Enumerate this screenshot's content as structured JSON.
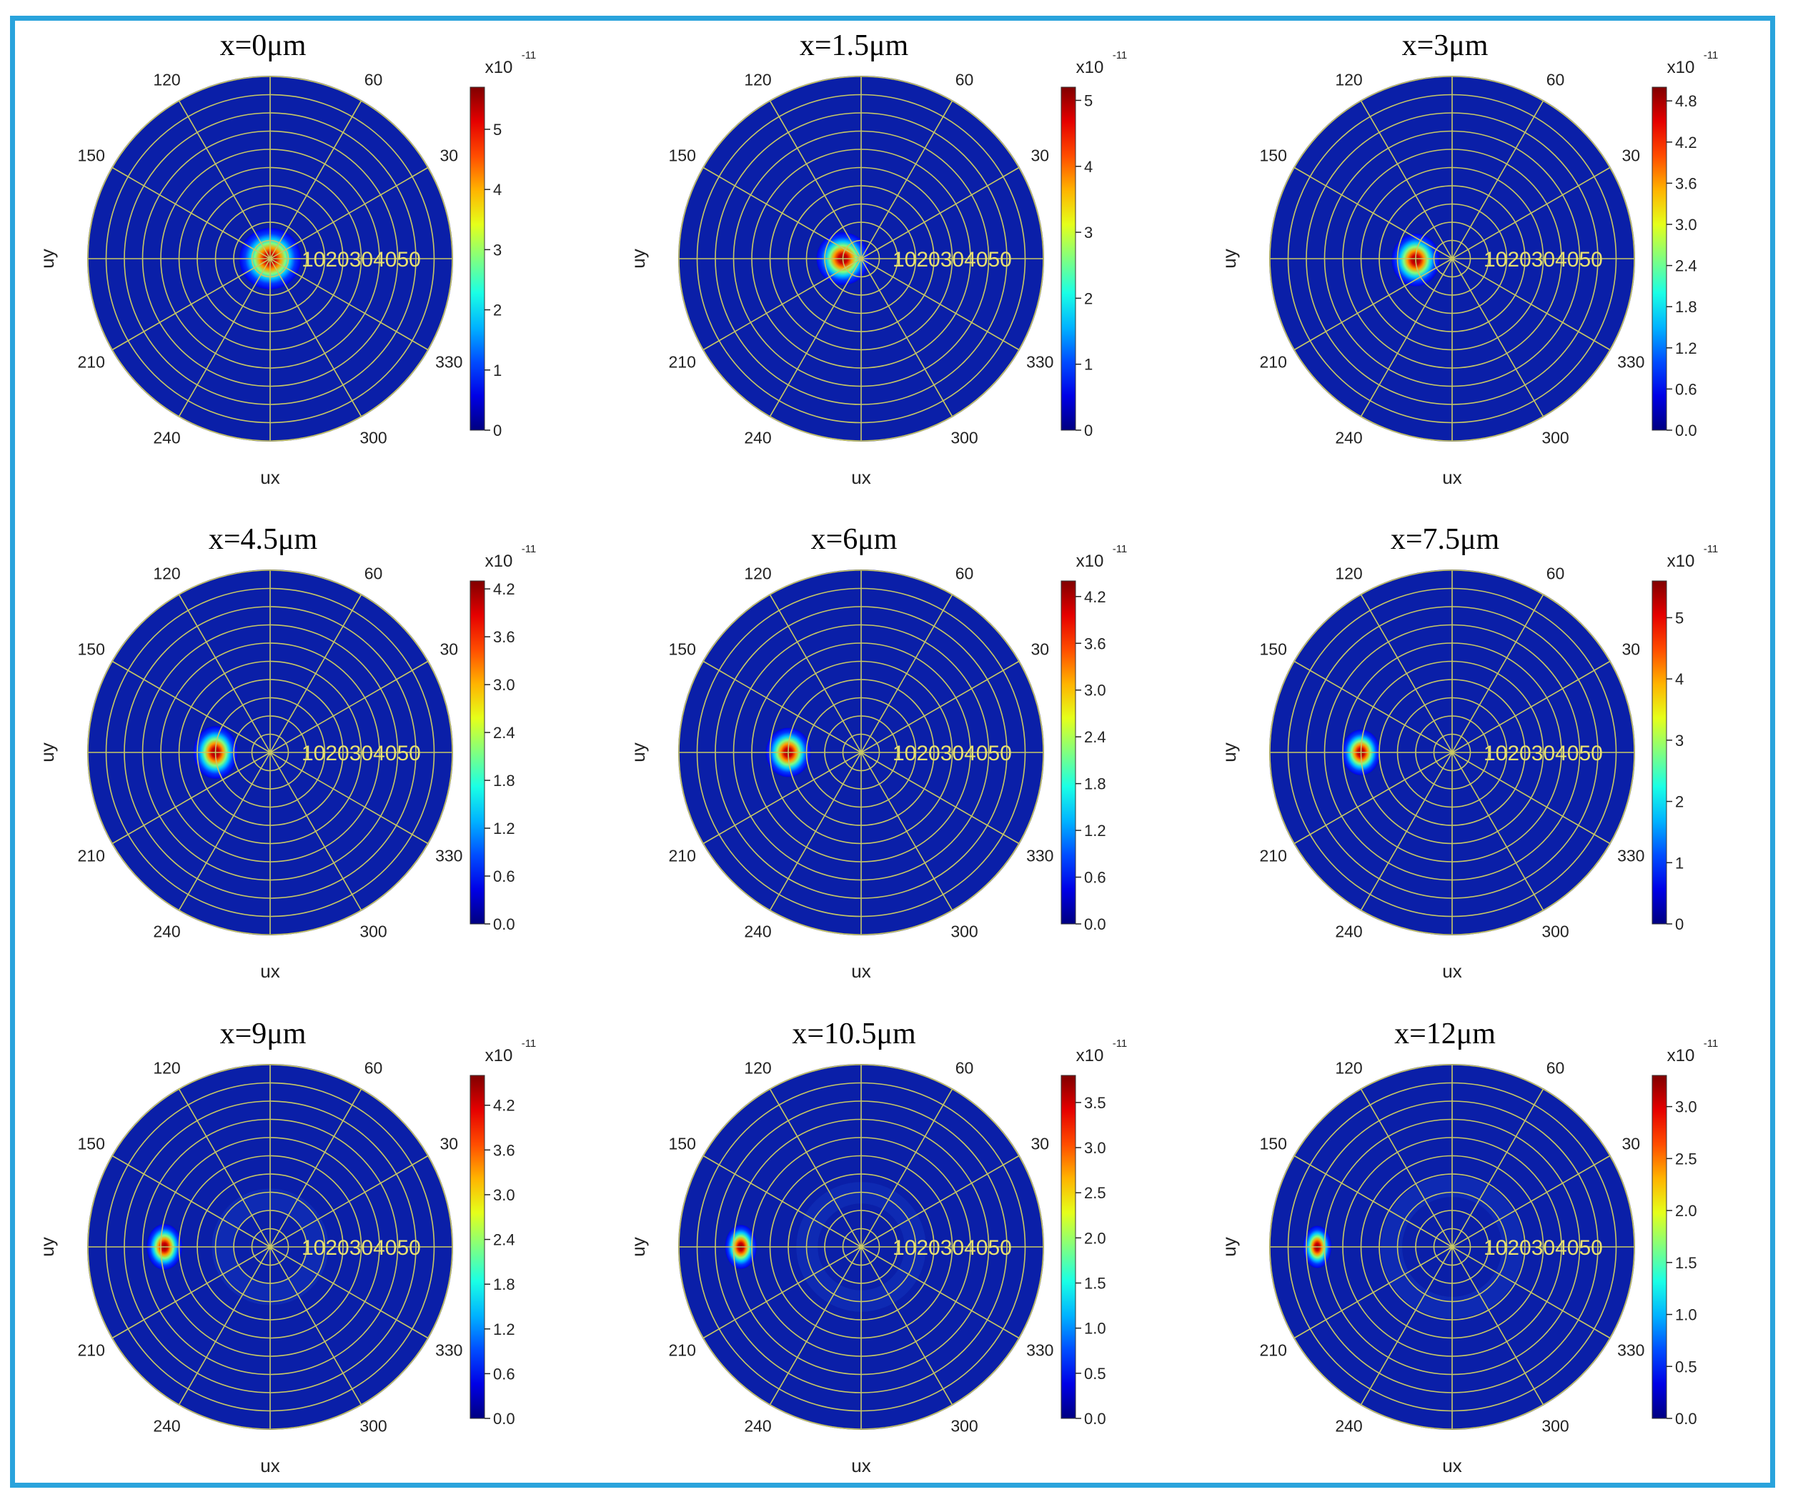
{
  "figure": {
    "colors": {
      "frame": "#29a3dc",
      "polar_bg": "#0a1fa8",
      "grid": "#c8c864"
    },
    "colormap": "jet"
  },
  "chart_data": [
    {
      "type": "heatmap",
      "title": "x=0μm",
      "xlabel": "ux",
      "ylabel": "uy",
      "angular_ticks": [
        "30",
        "60",
        "120",
        "150",
        "210",
        "240",
        "300",
        "330"
      ],
      "radial_ticks": [
        "10",
        "20",
        "30",
        "40",
        "50"
      ],
      "radial_range": [
        0,
        50
      ],
      "colorbar": {
        "exponent_base": "x10",
        "exponent": "-11",
        "ticks": [
          "0",
          "1",
          "2",
          "3",
          "4",
          "5"
        ],
        "range": [
          0,
          5.7
        ]
      },
      "spot": {
        "r": 0,
        "theta": 0,
        "sigma": 3.5,
        "peak": 5.7,
        "ring": false,
        "elong": 1.0
      }
    },
    {
      "type": "heatmap",
      "title": "x=1.5μm",
      "xlabel": "ux",
      "ylabel": "uy",
      "angular_ticks": [
        "30",
        "60",
        "120",
        "150",
        "210",
        "240",
        "300",
        "330"
      ],
      "radial_ticks": [
        "10",
        "20",
        "30",
        "40",
        "50"
      ],
      "radial_range": [
        0,
        50
      ],
      "colorbar": {
        "exponent_base": "x10",
        "exponent": "-11",
        "ticks": [
          "0",
          "1",
          "2",
          "3",
          "4",
          "5"
        ],
        "range": [
          0,
          5.2
        ]
      },
      "spot": {
        "r": 5,
        "theta": 180,
        "sigma": 3.0,
        "peak": 5.2,
        "ring": false,
        "elong": 1.0
      }
    },
    {
      "type": "heatmap",
      "title": "x=3μm",
      "xlabel": "ux",
      "ylabel": "uy",
      "angular_ticks": [
        "30",
        "60",
        "120",
        "150",
        "210",
        "240",
        "300",
        "330"
      ],
      "radial_ticks": [
        "10",
        "20",
        "30",
        "40",
        "50"
      ],
      "radial_range": [
        0,
        50
      ],
      "colorbar": {
        "exponent_base": "x10",
        "exponent": "-11",
        "ticks": [
          "0.0",
          "0.6",
          "1.2",
          "1.8",
          "2.4",
          "3.0",
          "3.6",
          "4.2",
          "4.8"
        ],
        "range": [
          0,
          5.0
        ]
      },
      "spot": {
        "r": 10,
        "theta": 182,
        "sigma": 3.0,
        "peak": 5.0,
        "ring": false,
        "elong": 1.1
      }
    },
    {
      "type": "heatmap",
      "title": "x=4.5μm",
      "xlabel": "ux",
      "ylabel": "uy",
      "angular_ticks": [
        "30",
        "60",
        "120",
        "150",
        "210",
        "240",
        "300",
        "330"
      ],
      "radial_ticks": [
        "10",
        "20",
        "30",
        "40",
        "50"
      ],
      "radial_range": [
        0,
        50
      ],
      "colorbar": {
        "exponent_base": "x10",
        "exponent": "-11",
        "ticks": [
          "0.0",
          "0.6",
          "1.2",
          "1.8",
          "2.4",
          "3.0",
          "3.6",
          "4.2"
        ],
        "range": [
          0,
          4.3
        ]
      },
      "spot": {
        "r": 15,
        "theta": 180,
        "sigma": 3.0,
        "peak": 4.3,
        "ring": false,
        "elong": 1.2
      }
    },
    {
      "type": "heatmap",
      "title": "x=6μm",
      "xlabel": "ux",
      "ylabel": "uy",
      "angular_ticks": [
        "30",
        "60",
        "120",
        "150",
        "210",
        "240",
        "300",
        "330"
      ],
      "radial_ticks": [
        "10",
        "20",
        "30",
        "40",
        "50"
      ],
      "radial_range": [
        0,
        50
      ],
      "colorbar": {
        "exponent_base": "x10",
        "exponent": "-11",
        "ticks": [
          "0.0",
          "0.6",
          "1.2",
          "1.8",
          "2.4",
          "3.0",
          "3.6",
          "4.2"
        ],
        "range": [
          0,
          4.4
        ]
      },
      "spot": {
        "r": 20,
        "theta": 180,
        "sigma": 2.8,
        "peak": 4.4,
        "ring": false,
        "elong": 1.1
      }
    },
    {
      "type": "heatmap",
      "title": "x=7.5μm",
      "xlabel": "ux",
      "ylabel": "uy",
      "angular_ticks": [
        "30",
        "60",
        "120",
        "150",
        "210",
        "240",
        "300",
        "330"
      ],
      "radial_ticks": [
        "10",
        "20",
        "30",
        "40",
        "50"
      ],
      "radial_range": [
        0,
        50
      ],
      "colorbar": {
        "exponent_base": "x10",
        "exponent": "-11",
        "ticks": [
          "0",
          "1",
          "2",
          "3",
          "4",
          "5"
        ],
        "range": [
          0,
          5.6
        ]
      },
      "spot": {
        "r": 25,
        "theta": 180,
        "sigma": 2.6,
        "peak": 5.6,
        "ring": false,
        "elong": 1.2
      }
    },
    {
      "type": "heatmap",
      "title": "x=9μm",
      "xlabel": "ux",
      "ylabel": "uy",
      "angular_ticks": [
        "30",
        "60",
        "120",
        "150",
        "210",
        "240",
        "300",
        "330"
      ],
      "radial_ticks": [
        "10",
        "20",
        "30",
        "40",
        "50"
      ],
      "radial_range": [
        0,
        50
      ],
      "colorbar": {
        "exponent_base": "x10",
        "exponent": "-11",
        "ticks": [
          "0.0",
          "0.6",
          "1.2",
          "1.8",
          "2.4",
          "3.0",
          "3.6",
          "4.2"
        ],
        "range": [
          0,
          4.6
        ]
      },
      "spot": {
        "r": 29,
        "theta": 180,
        "sigma": 2.6,
        "peak": 4.6,
        "ring": true,
        "elong": 1.3
      }
    },
    {
      "type": "heatmap",
      "title": "x=10.5μm",
      "xlabel": "ux",
      "ylabel": "uy",
      "angular_ticks": [
        "30",
        "60",
        "120",
        "150",
        "210",
        "240",
        "300",
        "330"
      ],
      "radial_ticks": [
        "10",
        "20",
        "30",
        "40",
        "50"
      ],
      "radial_range": [
        0,
        50
      ],
      "colorbar": {
        "exponent_base": "x10",
        "exponent": "-11",
        "ticks": [
          "0.0",
          "0.5",
          "1.0",
          "1.5",
          "2.0",
          "2.5",
          "3.0",
          "3.5"
        ],
        "range": [
          0,
          3.8
        ]
      },
      "spot": {
        "r": 33,
        "theta": 180,
        "sigma": 2.5,
        "peak": 3.8,
        "ring": true,
        "elong": 1.4
      }
    },
    {
      "type": "heatmap",
      "title": "x=12μm",
      "xlabel": "ux",
      "ylabel": "uy",
      "angular_ticks": [
        "30",
        "60",
        "120",
        "150",
        "210",
        "240",
        "300",
        "330"
      ],
      "radial_ticks": [
        "10",
        "20",
        "30",
        "40",
        "50"
      ],
      "radial_range": [
        0,
        50
      ],
      "colorbar": {
        "exponent_base": "x10",
        "exponent": "-11",
        "ticks": [
          "0.0",
          "0.5",
          "1.0",
          "1.5",
          "2.0",
          "2.5",
          "3.0"
        ],
        "range": [
          0,
          3.3
        ]
      },
      "spot": {
        "r": 37,
        "theta": 180,
        "sigma": 2.4,
        "peak": 3.3,
        "ring": true,
        "elong": 1.5
      }
    }
  ]
}
